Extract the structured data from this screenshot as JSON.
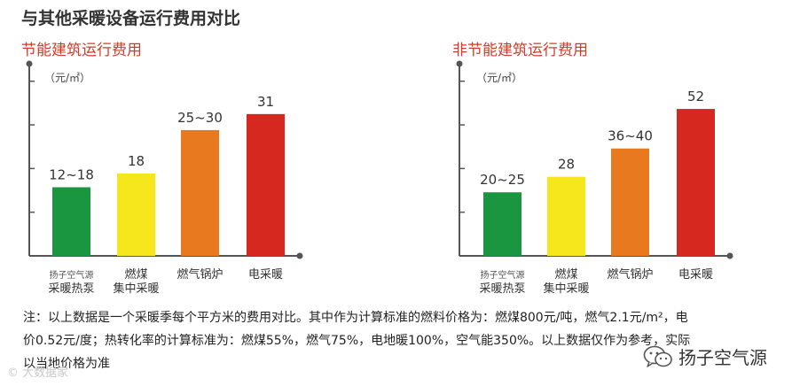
{
  "header": {
    "title": "与其他采暖设备运行费用对比"
  },
  "chart_data": [
    {
      "type": "bar",
      "title": "节能建筑运行费用",
      "ylabel": "（元/㎡）",
      "categories": [
        {
          "sub": "扬子空气源",
          "lines": [
            "采暖热泵"
          ]
        },
        {
          "sub": "",
          "lines": [
            "燃煤",
            "集中采暖"
          ]
        },
        {
          "sub": "",
          "lines": [
            "燃气锅炉"
          ]
        },
        {
          "sub": "",
          "lines": [
            "电采暖"
          ]
        }
      ],
      "values": [
        15,
        18,
        27.5,
        31
      ],
      "data_labels": [
        "12~18",
        "18",
        "25~30",
        "31"
      ],
      "colors": [
        "#1a9641",
        "#f5e71b",
        "#e8791e",
        "#d6281f"
      ],
      "ylim": [
        0,
        42
      ],
      "grid": false
    },
    {
      "type": "bar",
      "title": "非节能建筑运行费用",
      "ylabel": "（元/㎡）",
      "categories": [
        {
          "sub": "扬子空气源",
          "lines": [
            "采暖热泵"
          ]
        },
        {
          "sub": "",
          "lines": [
            "燃煤",
            "集中采暖"
          ]
        },
        {
          "sub": "",
          "lines": [
            "燃气锅炉"
          ]
        },
        {
          "sub": "",
          "lines": [
            "电采暖"
          ]
        }
      ],
      "values": [
        22.5,
        28,
        38,
        52
      ],
      "data_labels": [
        "20~25",
        "28",
        "36~40",
        "52"
      ],
      "colors": [
        "#1a9641",
        "#f5e71b",
        "#e8791e",
        "#d6281f"
      ],
      "ylim": [
        0,
        68
      ],
      "grid": false
    }
  ],
  "note": {
    "lines": [
      "注：以上数据是一个采暖季每个平方米的费用对比。其中作为计算标准的燃料价格为：燃煤800元/吨，燃气2.1元/m²，电",
      "价0.52元/度；热转化率的计算标准为：燃煤55%，燃气75%，电地暖100%，空气能350%。以上数据仅作为参考，实际",
      "以当地价格为准"
    ]
  },
  "watermarks": {
    "left": "© 大数据家",
    "brand": "扬子空气源"
  }
}
